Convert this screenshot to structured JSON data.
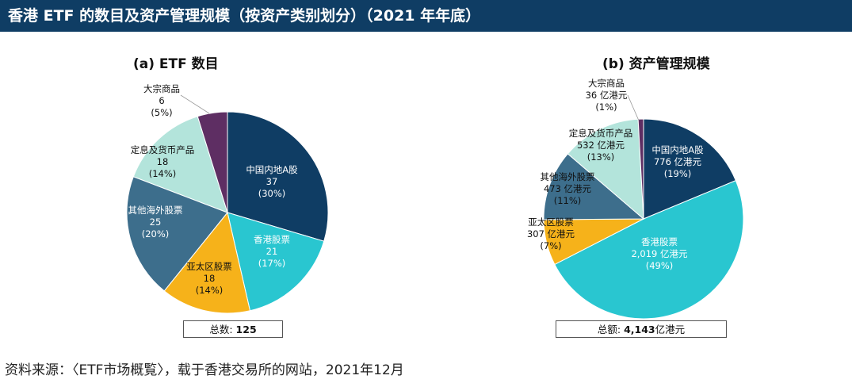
{
  "header": {
    "title": "香港 ETF 的数目及资产管理规模（按资产类别划分）（2021 年年底）"
  },
  "footer": {
    "source": "资料来源：〈ETF市场概覧〉，载于香港交易所的网站，2021年12月"
  },
  "chart_data": [
    {
      "type": "pie",
      "title": "(a) ETF 数目",
      "total_label": "总数: ",
      "total_value": "125",
      "slices": [
        {
          "name": "中国内地A股",
          "value": 37,
          "value_label": "37",
          "pct_label": "(30%)",
          "color": "#0f3d64"
        },
        {
          "name": "香港股票",
          "value": 21,
          "value_label": "21",
          "pct_label": "(17%)",
          "color": "#29c6d0"
        },
        {
          "name": "亚太区股票",
          "value": 18,
          "value_label": "18",
          "pct_label": "(14%)",
          "color": "#f6b21a"
        },
        {
          "name": "其他海外股票",
          "value": 25,
          "value_label": "25",
          "pct_label": "(20%)",
          "color": "#3d6e8c"
        },
        {
          "name": "定息及货币产品",
          "value": 18,
          "value_label": "18",
          "pct_label": "(14%)",
          "color": "#b3e4db"
        },
        {
          "name": "大宗商品",
          "value": 6,
          "value_label": "6",
          "pct_label": "(5%)",
          "color": "#5e2e63"
        }
      ]
    },
    {
      "type": "pie",
      "title": "(b)  资产管理规模",
      "total_label": "总额: ",
      "total_value": "4,143",
      "total_unit": "亿港元",
      "slices": [
        {
          "name": "中国内地A股",
          "value": 776,
          "value_label": "776 亿港元",
          "pct_label": "(19%)",
          "color": "#0f3d64"
        },
        {
          "name": "香港股票",
          "value": 2019,
          "value_label": "2,019 亿港元",
          "pct_label": "(49%)",
          "color": "#29c6d0"
        },
        {
          "name": "亚太区股票",
          "value": 307,
          "value_label": "307 亿港元",
          "pct_label": "(7%)",
          "color": "#f6b21a"
        },
        {
          "name": "其他海外股票",
          "value": 473,
          "value_label": "473 亿港元",
          "pct_label": "(11%)",
          "color": "#3d6e8c"
        },
        {
          "name": "定息及货币产品",
          "value": 532,
          "value_label": "532 亿港元",
          "pct_label": "(13%)",
          "color": "#b3e4db"
        },
        {
          "name": "大宗商品",
          "value": 36,
          "value_label": "36 亿港元",
          "pct_label": "(1%)",
          "color": "#5e2e63"
        }
      ]
    }
  ]
}
